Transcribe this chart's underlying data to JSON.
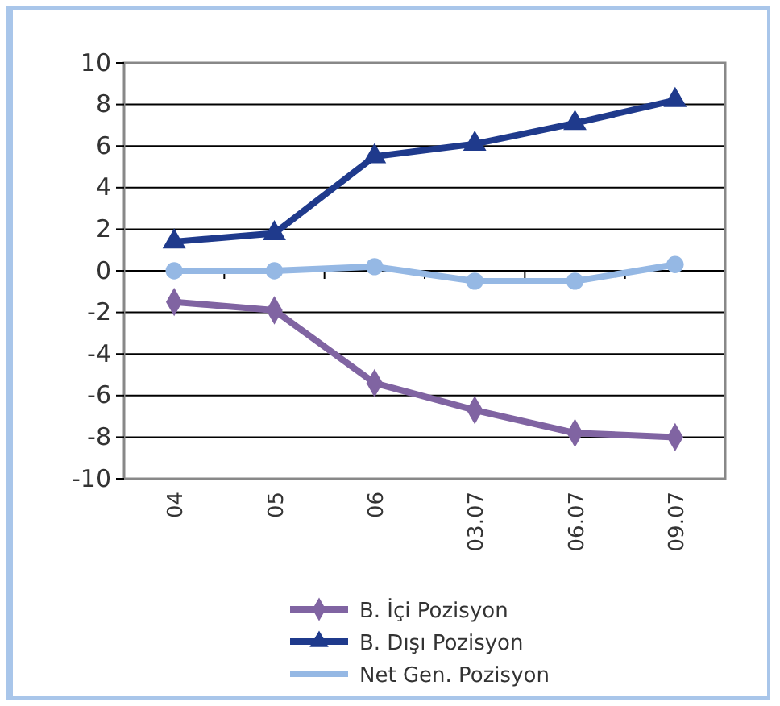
{
  "chart_data": {
    "type": "line",
    "categories": [
      "04",
      "05",
      "06",
      "03.07",
      "06.07",
      "09.07"
    ],
    "series": [
      {
        "name": "B. İçi Pozisyon",
        "color": "#8064a2",
        "marker": "diamond",
        "values": [
          -1.5,
          -1.9,
          -5.4,
          -6.7,
          -7.8,
          -8.0
        ]
      },
      {
        "name": "B. Dışı Pozisyon",
        "color": "#1f3a8c",
        "marker": "triangle",
        "values": [
          1.4,
          1.8,
          5.5,
          6.1,
          7.1,
          8.2
        ]
      },
      {
        "name": "Net Gen. Pozisyon",
        "color": "#95b8e4",
        "marker": "circle",
        "values": [
          0.0,
          0.0,
          0.2,
          -0.5,
          -0.5,
          0.3
        ]
      }
    ],
    "ylim": [
      -10,
      10
    ],
    "yticks": [
      -10,
      -8,
      -6,
      -4,
      -2,
      0,
      2,
      4,
      6,
      8,
      10
    ],
    "grid": "y",
    "legend": "bottom",
    "line_style": "solid"
  }
}
